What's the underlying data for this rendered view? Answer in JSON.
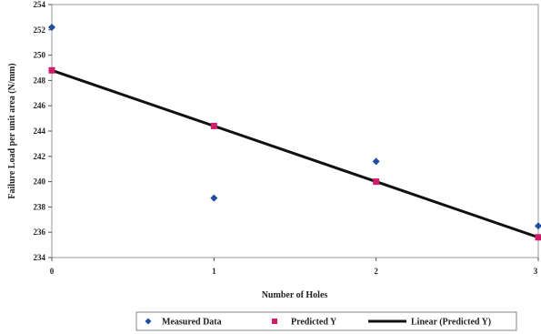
{
  "chart_data": {
    "type": "scatter",
    "xlabel": "Number of Holes",
    "ylabel": "Failure Load per unit area (N/mm)",
    "xlim": [
      0,
      3
    ],
    "ylim": [
      234,
      254
    ],
    "x_ticks": [
      "0",
      "1",
      "2",
      "3"
    ],
    "y_ticks": [
      "234",
      "236",
      "238",
      "240",
      "242",
      "244",
      "246",
      "248",
      "250",
      "252",
      "254"
    ],
    "grid": false,
    "legend_position": "bottom",
    "series": [
      {
        "name": "Measured Data",
        "kind": "scatter",
        "marker": "diamond",
        "color": "#1f4e9e",
        "x": [
          0,
          1,
          2,
          3
        ],
        "y": [
          252.2,
          238.7,
          241.6,
          236.5
        ]
      },
      {
        "name": "Predicted Y",
        "kind": "scatter",
        "marker": "square",
        "color": "#d01c6a",
        "x": [
          0,
          1,
          2,
          3
        ],
        "y": [
          248.8,
          244.4,
          240.0,
          235.6
        ]
      },
      {
        "name": "Linear (Predicted Y)",
        "kind": "line",
        "color": "#111111",
        "x": [
          0,
          3
        ],
        "y": [
          248.8,
          235.6
        ]
      }
    ]
  }
}
